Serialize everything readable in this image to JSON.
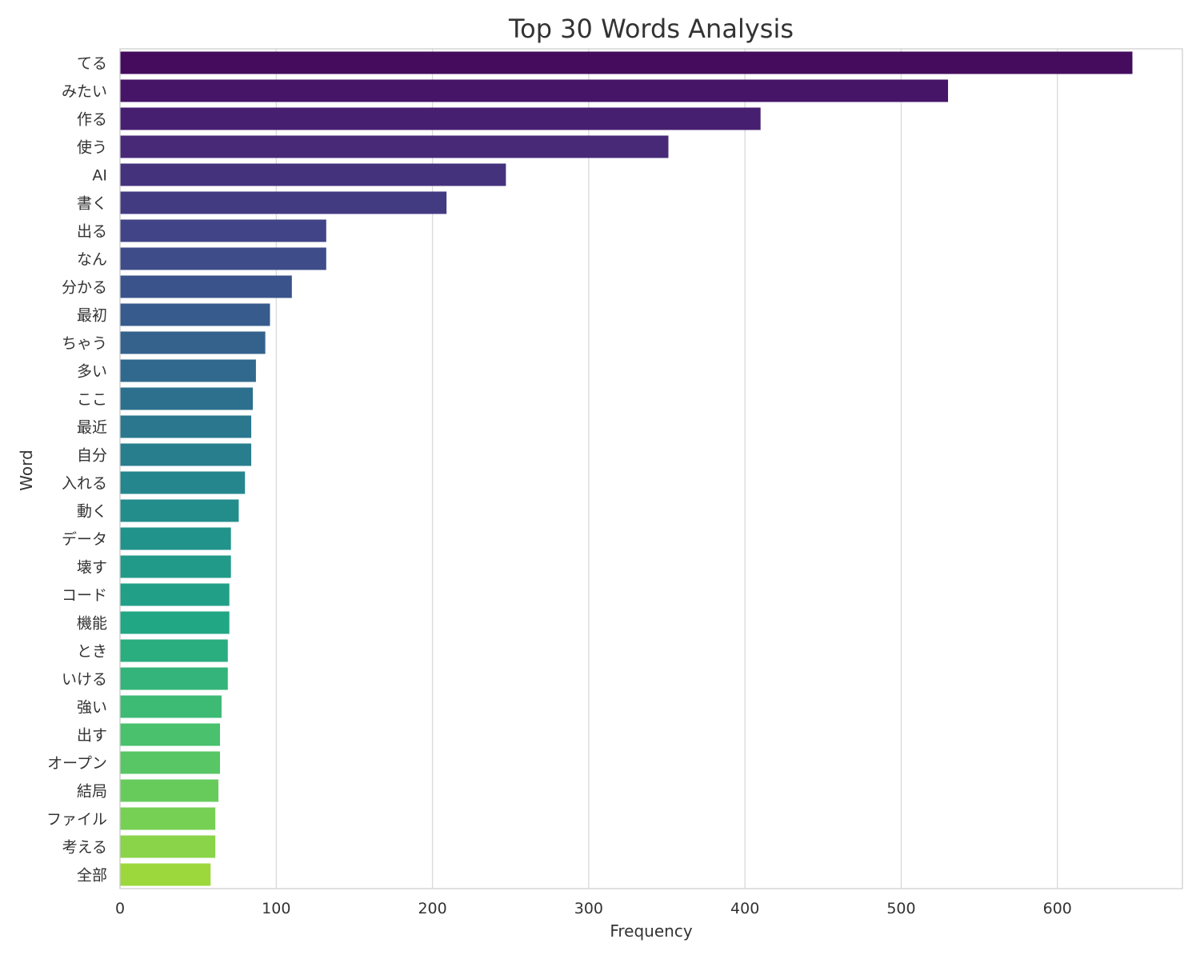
{
  "chart_data": {
    "type": "bar",
    "orientation": "horizontal",
    "title": "Top 30 Words Analysis",
    "xlabel": "Frequency",
    "ylabel": "Word",
    "xlim": [
      0,
      680
    ],
    "xticks": [
      0,
      100,
      200,
      300,
      400,
      500,
      600
    ],
    "grid": true,
    "palette": "viridis",
    "categories": [
      "てる",
      "みたい",
      "作る",
      "使う",
      "AI",
      "書く",
      "出る",
      "なん",
      "分かる",
      "最初",
      "ちゃう",
      "多い",
      "ここ",
      "最近",
      "自分",
      "入れる",
      "動く",
      "データ",
      "壊す",
      "コード",
      "機能",
      "とき",
      "いける",
      "強い",
      "出す",
      "オープン",
      "結局",
      "ファイル",
      "考える",
      "全部"
    ],
    "values": [
      648,
      530,
      410,
      351,
      247,
      209,
      132,
      132,
      110,
      96,
      93,
      87,
      85,
      84,
      84,
      80,
      76,
      71,
      71,
      70,
      70,
      69,
      69,
      65,
      64,
      64,
      63,
      61,
      61,
      58
    ]
  }
}
